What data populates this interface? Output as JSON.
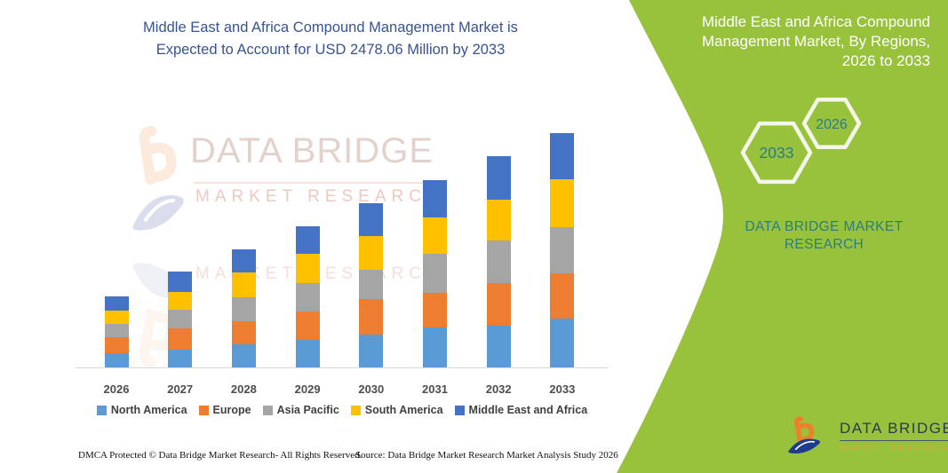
{
  "page": {
    "title_lines": [
      "Middle East and Africa Compound Management Market is",
      "Expected to Account for USD 2478.06 Million by 2033"
    ]
  },
  "right_panel": {
    "heading_lines": [
      "Middle East and Africa Compound",
      "Management Market, By Regions,",
      "2026 to 2033"
    ],
    "hexagons": [
      {
        "label": "2033"
      },
      {
        "label": "2026"
      }
    ],
    "brand_lines": [
      "DATA BRIDGE MARKET",
      "RESEARCH"
    ]
  },
  "watermark": {
    "line1": "DATA BRIDGE",
    "line2": "MARKET RESEARCH"
  },
  "logo": {
    "title": "DATA BRIDGE",
    "subtitle": "MARKET RESEARCH"
  },
  "footer": {
    "left": "DMCA Protected © Data Bridge Market Research-  All Rights Reserved.",
    "source": "Source: Data Bridge Market Research  Market Analysis Study 2026"
  },
  "theme": {
    "panel_green": "#98C23C",
    "brand_teal": "#2C7B85",
    "title_navy": "#375390",
    "hex_border": "#F4F6EA",
    "logo_orange": "#EF7F2A",
    "logo_navy": "#1F3B8C"
  },
  "chart_data": {
    "type": "bar",
    "stacked": true,
    "title": "Middle East and Africa Compound Management Market, By Regions, 2026 to 2033",
    "unit": "USD Million",
    "categories": [
      "2026",
      "2027",
      "2028",
      "2029",
      "2030",
      "2031",
      "2032",
      "2033"
    ],
    "series": [
      {
        "name": "North America",
        "color": "#5B9BD5",
        "values": [
          151,
          188,
          242,
          295,
          351,
          421,
          445,
          515
        ]
      },
      {
        "name": "Europe",
        "color": "#ED7D31",
        "values": [
          169,
          226,
          245,
          295,
          371,
          370,
          449,
          483
        ]
      },
      {
        "name": "Asia Pacific",
        "color": "#A5A5A5",
        "values": [
          138,
          195,
          254,
          304,
          311,
          408,
          446,
          489
        ]
      },
      {
        "name": "South America",
        "color": "#FFC000",
        "values": [
          144,
          188,
          264,
          308,
          360,
          383,
          436,
          502
        ]
      },
      {
        "name": "Middle East and Africa",
        "color": "#4472C4",
        "values": [
          148,
          214,
          245,
          295,
          345,
          402,
          461,
          489
        ]
      }
    ],
    "total_2033": 2478.06,
    "ylim": [
      0,
      2600
    ],
    "grid": false,
    "legend_position": "bottom",
    "note": "No y-axis shown in source; segment values estimated from bar pixel heights, scaled so the 2033 total equals USD 2478.06 Million stated in the title."
  }
}
